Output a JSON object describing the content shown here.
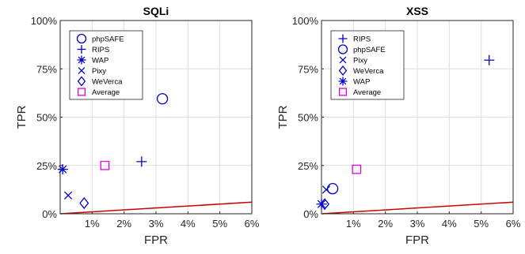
{
  "chart_data": [
    {
      "type": "scatter",
      "title": "SQLi",
      "xlabel": "FPR",
      "ylabel": "TPR",
      "xlim": [
        0,
        6
      ],
      "ylim": [
        0,
        100
      ],
      "x_ticks": [
        1,
        2,
        3,
        4,
        5,
        6
      ],
      "x_tick_labels": [
        "1%",
        "2%",
        "3%",
        "4%",
        "5%",
        "6%"
      ],
      "y_ticks": [
        0,
        25,
        50,
        75,
        100
      ],
      "y_tick_labels": [
        "0%",
        "25%",
        "50%",
        "75%",
        "100%"
      ],
      "grid": true,
      "legend_position": "top-left",
      "reference_line": {
        "x": [
          0,
          6
        ],
        "y": [
          0,
          6
        ],
        "color": "#cc0000"
      },
      "series": [
        {
          "name": "phpSAFE",
          "marker": "circle",
          "color": "#0000cc",
          "x": [
            3.2
          ],
          "y": [
            59.5
          ]
        },
        {
          "name": "RIPS",
          "marker": "plus",
          "color": "#0000cc",
          "x": [
            2.55
          ],
          "y": [
            27
          ]
        },
        {
          "name": "WAP",
          "marker": "asterisk",
          "color": "#0000cc",
          "x": [
            0.08
          ],
          "y": [
            23
          ]
        },
        {
          "name": "Pixy",
          "marker": "x",
          "color": "#0000cc",
          "x": [
            0.25
          ],
          "y": [
            9.5
          ]
        },
        {
          "name": "WeVerca",
          "marker": "diamond",
          "color": "#0000cc",
          "x": [
            0.75
          ],
          "y": [
            5.5
          ]
        },
        {
          "name": "Average",
          "marker": "square",
          "color": "#e000e0",
          "x": [
            1.4
          ],
          "y": [
            25
          ]
        }
      ]
    },
    {
      "type": "scatter",
      "title": "XSS",
      "xlabel": "FPR",
      "ylabel": "TPR",
      "xlim": [
        0,
        6
      ],
      "ylim": [
        0,
        100
      ],
      "x_ticks": [
        1,
        2,
        3,
        4,
        5,
        6
      ],
      "x_tick_labels": [
        "1%",
        "2%",
        "3%",
        "4%",
        "5%",
        "6%"
      ],
      "y_ticks": [
        0,
        25,
        50,
        75,
        100
      ],
      "y_tick_labels": [
        "0%",
        "25%",
        "50%",
        "75%",
        "100%"
      ],
      "grid": true,
      "legend_position": "top-left",
      "reference_line": {
        "x": [
          0,
          6
        ],
        "y": [
          0,
          6
        ],
        "color": "#cc0000"
      },
      "series": [
        {
          "name": "RIPS",
          "marker": "plus",
          "color": "#0000cc",
          "x": [
            5.25
          ],
          "y": [
            79.5
          ]
        },
        {
          "name": "phpSAFE",
          "marker": "circle",
          "color": "#0000cc",
          "x": [
            0.35
          ],
          "y": [
            13
          ]
        },
        {
          "name": "Pixy",
          "marker": "x",
          "color": "#0000cc",
          "x": [
            0.15
          ],
          "y": [
            12.5
          ]
        },
        {
          "name": "WeVerca",
          "marker": "diamond",
          "color": "#0000cc",
          "x": [
            0.1
          ],
          "y": [
            5
          ]
        },
        {
          "name": "WAP",
          "marker": "asterisk",
          "color": "#0000cc",
          "x": [
            0.0
          ],
          "y": [
            5
          ]
        },
        {
          "name": "Average",
          "marker": "square",
          "color": "#e000e0",
          "x": [
            1.1
          ],
          "y": [
            23
          ]
        }
      ]
    }
  ]
}
